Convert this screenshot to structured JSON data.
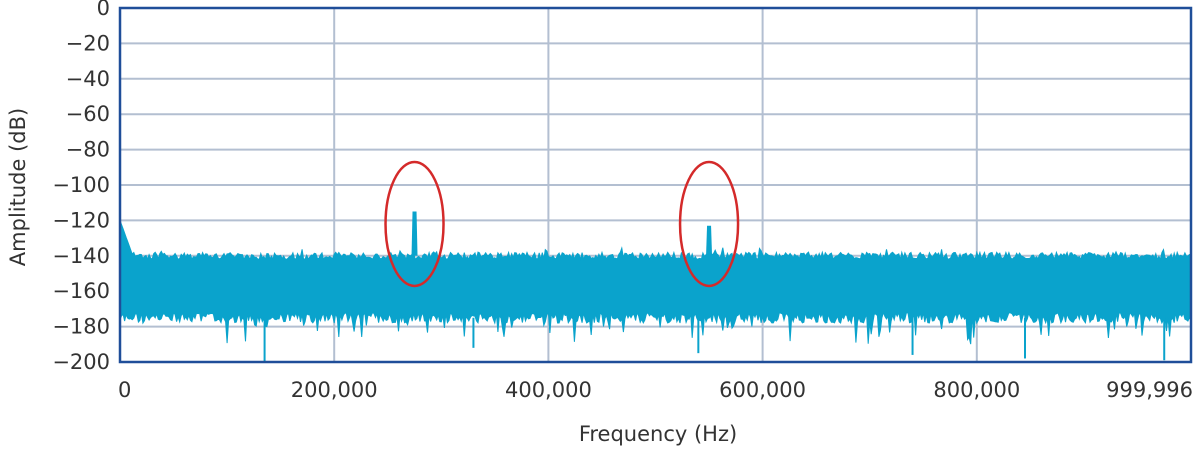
{
  "chart_data": {
    "type": "area",
    "title": "",
    "xlabel": "Frequency (Hz)",
    "ylabel": "Amplitude (dB)",
    "xlim": [
      0,
      999996
    ],
    "ylim": [
      -200,
      0
    ],
    "x_ticks": [
      0,
      200000,
      400000,
      600000,
      800000,
      999996
    ],
    "x_tick_labels": [
      "0",
      "200,000",
      "400,000",
      "600,000",
      "800,000",
      "999,996"
    ],
    "y_ticks": [
      0,
      -20,
      -40,
      -60,
      -80,
      -100,
      -120,
      -140,
      -160,
      -180,
      -200
    ],
    "y_tick_labels": [
      "0",
      "−20",
      "−40",
      "−60",
      "−80",
      "−100",
      "−120",
      "−140",
      "−160",
      "−180",
      "−200"
    ],
    "grid": true,
    "series": [
      {
        "color": "#0aa3cc",
        "noise_floor_band_db": [
          -140,
          -175
        ],
        "low_frequency_start_db": -120,
        "spikes": [
          {
            "x": 275000,
            "y": -115
          },
          {
            "x": 550000,
            "y": -123
          }
        ]
      }
    ],
    "annotations": [
      {
        "type": "ellipse",
        "center_x": 275000,
        "center_y": -122,
        "color": "#d42a2a"
      },
      {
        "type": "ellipse",
        "center_x": 550000,
        "center_y": -122,
        "color": "#d42a2a"
      }
    ]
  },
  "colors": {
    "plot_border": "#1f4e99",
    "grid": "#b3bfd1",
    "signal": "#0aa3cc",
    "highlight": "#d42a2a"
  }
}
